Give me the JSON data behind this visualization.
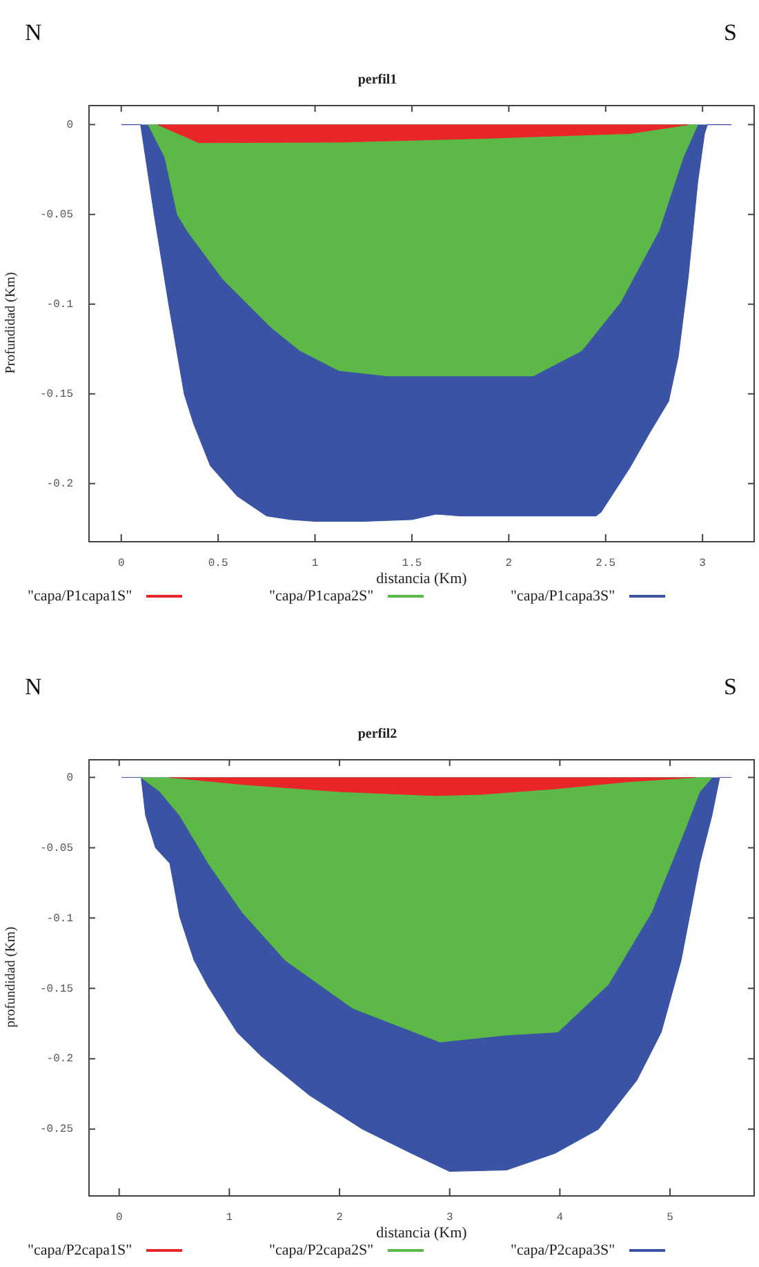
{
  "chart_data": [
    {
      "type": "area",
      "title": "perfil1",
      "xlabel": "distancia (Km)",
      "ylabel": "Profundidad (Km)",
      "annotations": [
        "N",
        "S"
      ],
      "legend": "bottom",
      "xlim": [
        -0.17,
        3.27
      ],
      "ylim": [
        -0.232,
        0.011
      ],
      "xticks": [
        0,
        0.5,
        1,
        1.5,
        2,
        2.5,
        3
      ],
      "yticks": [
        0,
        -0.05,
        -0.1,
        -0.15,
        -0.2
      ],
      "series": [
        {
          "name": "\"capa/P1capa1S\"",
          "color": "#e8262a",
          "x": [
            0.19,
            0.4,
            1.125,
            1.875,
            2.625,
            2.925
          ],
          "values": [
            0,
            -0.01,
            -0.0097,
            -0.0076,
            -0.0049,
            0
          ]
        },
        {
          "name": "\"capa/P1capa2S\"",
          "color": "#5cb947",
          "x": [
            0.14,
            0.225,
            0.29,
            0.34,
            0.525,
            0.775,
            0.925,
            1.125,
            1.375,
            1.75,
            2.125,
            2.375,
            2.575,
            2.775,
            2.9,
            2.975
          ],
          "values": [
            0,
            -0.018,
            -0.05,
            -0.059,
            -0.086,
            -0.113,
            -0.126,
            -0.137,
            -0.14,
            -0.14,
            -0.14,
            -0.126,
            -0.099,
            -0.059,
            -0.018,
            0
          ]
        },
        {
          "name": "\"capa/P1capa3S\"",
          "color": "#3a53a4",
          "x": [
            0,
            0.1,
            0.17,
            0.245,
            0.325,
            0.375,
            0.46,
            0.6,
            0.75,
            0.875,
            1,
            1.25,
            1.5,
            1.625,
            1.75,
            2,
            2.25,
            2.45,
            2.475,
            2.625,
            2.725,
            2.825,
            2.875,
            2.925,
            2.975,
            3.01,
            3.025,
            3.15
          ],
          "values": [
            0,
            0,
            -0.05,
            -0.1,
            -0.15,
            -0.167,
            -0.19,
            -0.207,
            -0.218,
            -0.22,
            -0.221,
            -0.221,
            -0.22,
            -0.217,
            -0.218,
            -0.218,
            -0.218,
            -0.218,
            -0.216,
            -0.191,
            -0.172,
            -0.154,
            -0.129,
            -0.086,
            -0.032,
            -0.005,
            0,
            0
          ]
        }
      ]
    },
    {
      "type": "area",
      "title": "perfil2",
      "xlabel": "distancia (Km)",
      "ylabel": "profundidad (Km)",
      "annotations": [
        "N",
        "S"
      ],
      "legend": "bottom",
      "xlim": [
        -0.28,
        5.77
      ],
      "ylim": [
        -0.297,
        0.013
      ],
      "xticks": [
        0,
        1,
        2,
        3,
        4,
        5
      ],
      "yticks": [
        0,
        -0.05,
        -0.1,
        -0.15,
        -0.2,
        -0.25
      ],
      "series": [
        {
          "name": "\"capa/P2capa1S\"",
          "color": "#e8262a",
          "x": [
            0.46,
            1.12,
            1.99,
            2.87,
            3.3,
            3.96,
            4.62,
            5.23
          ],
          "values": [
            0,
            -0.005,
            -0.01,
            -0.013,
            -0.012,
            -0.008,
            -0.003,
            0
          ]
        },
        {
          "name": "\"capa/P2capa2S\"",
          "color": "#5cb947",
          "x": [
            0.2,
            0.37,
            0.55,
            0.81,
            1.12,
            1.51,
            2.12,
            2.91,
            3.52,
            3.98,
            4.44,
            4.83,
            5.1,
            5.27,
            5.38
          ],
          "values": [
            0,
            -0.01,
            -0.027,
            -0.061,
            -0.096,
            -0.13,
            -0.164,
            -0.188,
            -0.183,
            -0.181,
            -0.147,
            -0.096,
            -0.044,
            -0.01,
            0
          ]
        },
        {
          "name": "\"capa/P2capa3S\"",
          "color": "#3a53a4",
          "x": [
            0.02,
            0.2,
            0.24,
            0.33,
            0.46,
            0.55,
            0.68,
            0.81,
            1.07,
            1.29,
            1.73,
            2.21,
            2.65,
            3,
            3.52,
            3.96,
            4.35,
            4.7,
            4.92,
            5.1,
            5.27,
            5.38,
            5.45,
            5.56
          ],
          "values": [
            0,
            0,
            -0.027,
            -0.05,
            -0.061,
            -0.099,
            -0.13,
            -0.149,
            -0.181,
            -0.198,
            -0.226,
            -0.25,
            -0.267,
            -0.28,
            -0.279,
            -0.267,
            -0.25,
            -0.215,
            -0.181,
            -0.13,
            -0.061,
            -0.027,
            0,
            0
          ]
        }
      ]
    }
  ]
}
